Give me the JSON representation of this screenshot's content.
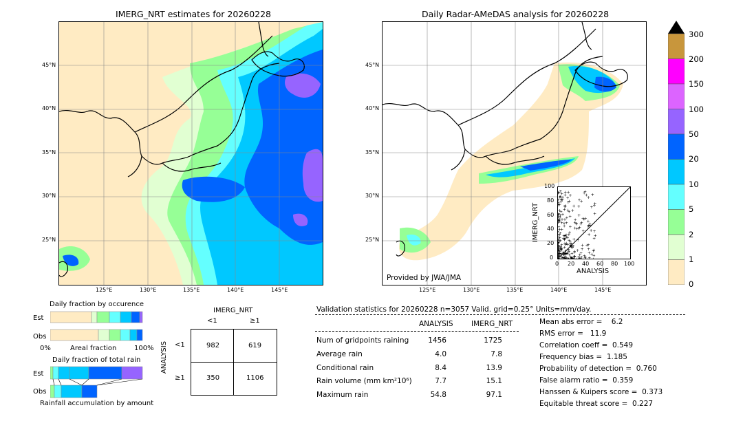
{
  "left_map": {
    "title": "IMERG_NRT estimates for 20260228",
    "lat_ticks": [
      "45°N",
      "40°N",
      "35°N",
      "30°N",
      "25°N"
    ],
    "lon_ticks": [
      "125°E",
      "130°E",
      "135°E",
      "140°E",
      "145°E"
    ]
  },
  "right_map": {
    "title": "Daily Radar-AMeDAS analysis for 20260228",
    "lat_ticks": [
      "45°N",
      "40°N",
      "35°N",
      "30°N",
      "25°N"
    ],
    "lon_ticks": [
      "125°E",
      "130°E",
      "135°E",
      "140°E",
      "145°E"
    ],
    "credit": "Provided by JWA/JMA"
  },
  "colorbar": {
    "labels": [
      "300",
      "200",
      "150",
      "100",
      "50",
      "20",
      "10",
      "5",
      "2",
      "1",
      "0"
    ],
    "colors": [
      "#c8963c",
      "#ff00ff",
      "#dc64ff",
      "#9664ff",
      "#0064ff",
      "#00c8ff",
      "#64ffff",
      "#96ff96",
      "#e1ffd2",
      "#ffebc3"
    ]
  },
  "inset": {
    "xlabel": "ANALYSIS",
    "ylabel": "IMERG_NRT",
    "x_ticks": [
      "0",
      "20",
      "40",
      "60",
      "80",
      "100"
    ],
    "y_ticks": [
      "0",
      "20",
      "40",
      "60",
      "80",
      "100"
    ]
  },
  "occurrence": {
    "title": "Daily fraction by occurence",
    "row_est": "Est",
    "row_obs": "Obs",
    "axis_left": "0%",
    "axis_mid": "Areal fraction",
    "axis_right": "100%"
  },
  "total_rain": {
    "title": "Daily fraction of total rain",
    "row_est": "Est",
    "row_obs": "Obs",
    "footer": "Rainfall accumulation by amount"
  },
  "contingency": {
    "col_title": "IMERG_NRT",
    "col_lt": "<1",
    "col_ge": "≥1",
    "row_title": "ANALYSIS",
    "row_lt": "<1",
    "row_ge": "≥1",
    "a": "982",
    "b": "619",
    "c": "350",
    "d": "1106"
  },
  "validation": {
    "header": "Validation statistics for 20260228  n=3057 Valid. grid=0.25° Units=mm/day.",
    "col_analysis": "ANALYSIS",
    "col_imerg": "IMERG_NRT",
    "rows": [
      {
        "label": "Num of gridpoints raining",
        "analysis": "1456",
        "imerg": "1725"
      },
      {
        "label": "Average rain",
        "analysis": "4.0",
        "imerg": "7.8"
      },
      {
        "label": "Conditional rain",
        "analysis": "8.4",
        "imerg": "13.9"
      },
      {
        "label": "Rain volume (mm km²10⁶)",
        "analysis": "7.7",
        "imerg": "15.1"
      },
      {
        "label": "Maximum rain",
        "analysis": "54.8",
        "imerg": "97.1"
      }
    ],
    "scores": [
      "Mean abs error =    6.2",
      "RMS error =   11.9",
      "Correlation coeff =  0.549",
      "Frequency bias =  1.185",
      "Probability of detection =  0.760",
      "False alarm ratio =  0.359",
      "Hanssen & Kuipers score =  0.373",
      "Equitable threat score =  0.227"
    ]
  }
}
